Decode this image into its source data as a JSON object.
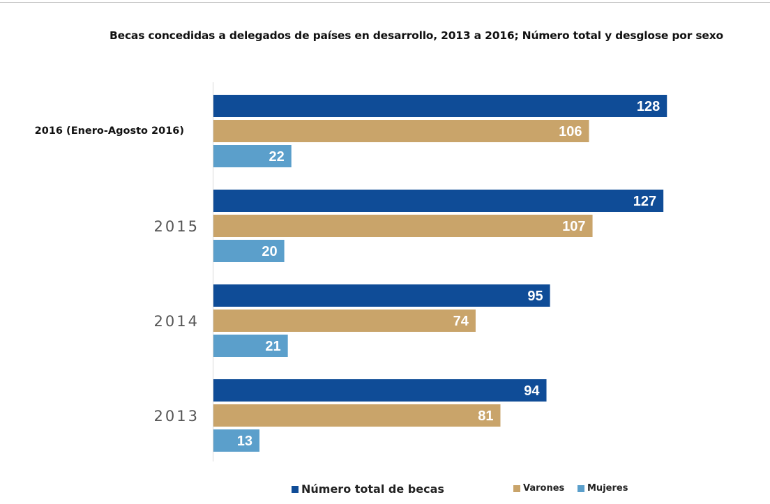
{
  "chart_data": {
    "type": "bar",
    "orientation": "horizontal",
    "title": "Becas concedidas a delegados de países en desarrollo, 2013 a 2016; Número total y desglose por sexo",
    "categories": [
      "2016 (Enero-Agosto 2016)",
      "2015",
      "2014",
      "2013"
    ],
    "series": [
      {
        "name": "Número total de becas",
        "color": "#0f4c97",
        "values": [
          128,
          127,
          95,
          94
        ]
      },
      {
        "name": "Varones",
        "color": "#c9a46a",
        "values": [
          106,
          107,
          74,
          81
        ]
      },
      {
        "name": "Mujeres",
        "color": "#5b9fcb",
        "values": [
          22,
          20,
          21,
          13
        ]
      }
    ],
    "xlim": [
      0,
      140
    ],
    "grid": false,
    "data_labels": true,
    "legend_position": "bottom"
  }
}
